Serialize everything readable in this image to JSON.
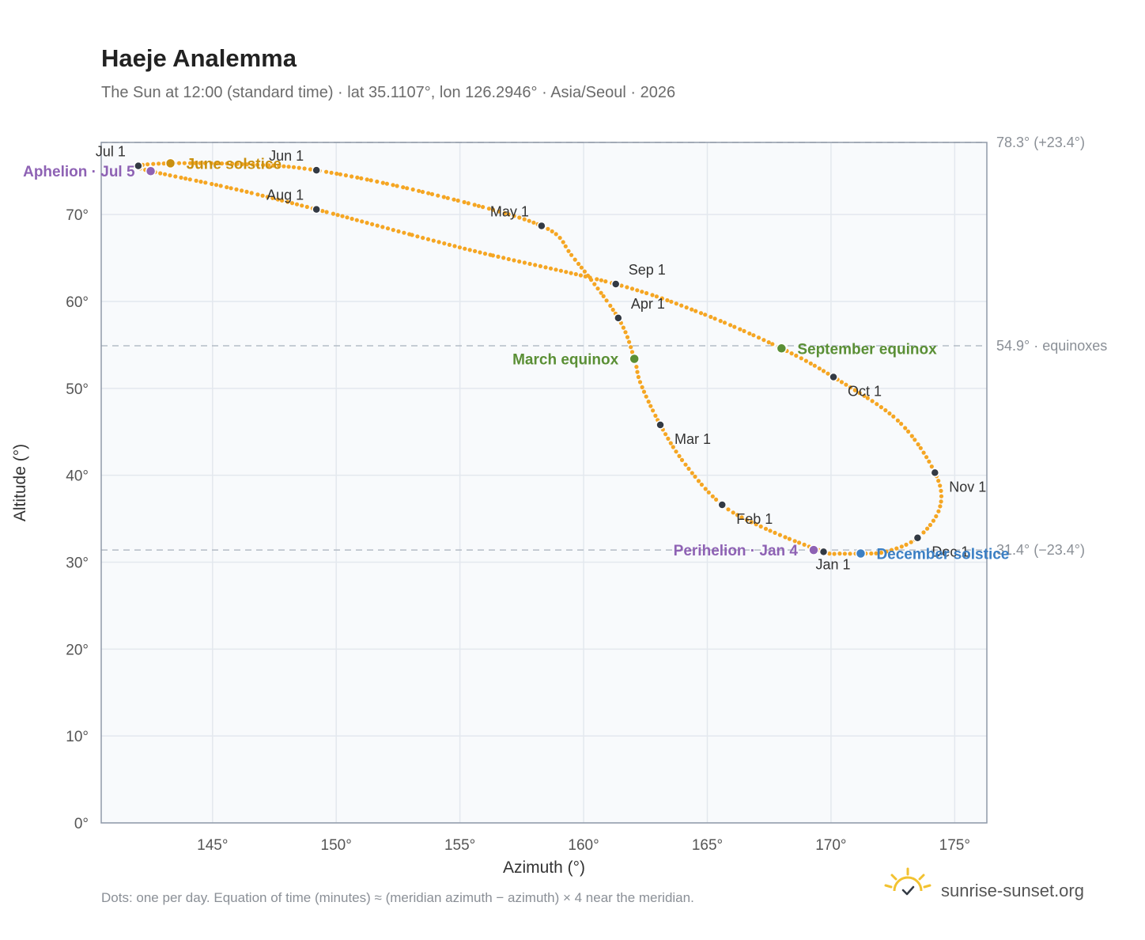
{
  "header": {
    "title": "Haeje Analemma",
    "subtitle": "The Sun at 12:00 (standard time) · lat 35.1107°, lon 126.2946° · Asia/Seoul · 2026"
  },
  "footer": {
    "note": "Dots: one per day. Equation of time (minutes) ≈ (meridian azimuth − azimuth) × 4 near the meridian.",
    "brand": "sunrise-sunset.org"
  },
  "colors": {
    "curve": "#f5a623",
    "month_dot": "#333a44",
    "solstice_june": "#c9900f",
    "equinox": "#5a8f35",
    "apsis": "#8e62b4",
    "solstice_december": "#3b7fc4",
    "plot_bg": "#f8fafc",
    "grid": "#e3e8ee",
    "frame": "#8f99a8",
    "ref_line": "#b4bcc6"
  },
  "chart_data": {
    "type": "scatter",
    "title": "Haeje Analemma",
    "xlabel": "Azimuth (°)",
    "ylabel": "Altitude (°)",
    "xlim": [
      140.5,
      176.3
    ],
    "ylim": [
      0,
      78.3
    ],
    "x_ticks": [
      145,
      150,
      155,
      160,
      165,
      170,
      175
    ],
    "y_ticks": [
      0,
      10,
      20,
      30,
      40,
      50,
      60,
      70
    ],
    "grid": true,
    "reference_lines": [
      {
        "altitude": 78.3,
        "label": "78.3° (+23.4°)"
      },
      {
        "altitude": 54.9,
        "label": "54.9° · equinoxes"
      },
      {
        "altitude": 31.4,
        "label": "31.4° (−23.4°)"
      }
    ],
    "path": [
      {
        "az": 169.7,
        "alt": 31.2
      },
      {
        "az": 167.4,
        "alt": 33.8
      },
      {
        "az": 165.6,
        "alt": 36.6
      },
      {
        "az": 164.1,
        "alt": 41.3
      },
      {
        "az": 163.1,
        "alt": 45.8
      },
      {
        "az": 162.3,
        "alt": 50.6
      },
      {
        "az": 162.05,
        "alt": 53.4
      },
      {
        "az": 161.4,
        "alt": 58.1
      },
      {
        "az": 159.6,
        "alt": 65.0
      },
      {
        "az": 158.3,
        "alt": 68.7
      },
      {
        "az": 153.8,
        "alt": 72.4
      },
      {
        "az": 149.2,
        "alt": 75.1
      },
      {
        "az": 146.2,
        "alt": 75.8
      },
      {
        "az": 143.3,
        "alt": 75.9
      },
      {
        "az": 142.0,
        "alt": 75.6
      },
      {
        "az": 142.5,
        "alt": 75.0
      },
      {
        "az": 145.8,
        "alt": 73.0
      },
      {
        "az": 149.2,
        "alt": 70.6
      },
      {
        "az": 155.3,
        "alt": 66.0
      },
      {
        "az": 161.3,
        "alt": 62.0
      },
      {
        "az": 164.8,
        "alt": 58.6
      },
      {
        "az": 168.0,
        "alt": 54.6
      },
      {
        "az": 170.1,
        "alt": 51.3
      },
      {
        "az": 172.7,
        "alt": 46.3
      },
      {
        "az": 174.2,
        "alt": 40.3
      },
      {
        "az": 174.4,
        "alt": 36.3
      },
      {
        "az": 173.5,
        "alt": 32.8
      },
      {
        "az": 172.2,
        "alt": 31.2
      },
      {
        "az": 171.2,
        "alt": 31.0
      },
      {
        "az": 170.3,
        "alt": 31.0
      },
      {
        "az": 169.7,
        "alt": 31.2
      }
    ],
    "month_markers": [
      {
        "label": "Jan 1",
        "az": 169.7,
        "alt": 31.2,
        "anchor": "below"
      },
      {
        "label": "Feb 1",
        "az": 165.6,
        "alt": 36.6,
        "anchor": "below-right"
      },
      {
        "label": "Mar 1",
        "az": 163.1,
        "alt": 45.8,
        "anchor": "below-right"
      },
      {
        "label": "Apr 1",
        "az": 161.4,
        "alt": 58.1,
        "anchor": "above-right"
      },
      {
        "label": "May 1",
        "az": 158.3,
        "alt": 68.7,
        "anchor": "above-left"
      },
      {
        "label": "Jun 1",
        "az": 149.2,
        "alt": 75.1,
        "anchor": "above-left"
      },
      {
        "label": "Jul 1",
        "az": 142.0,
        "alt": 75.6,
        "anchor": "above-left"
      },
      {
        "label": "Aug 1",
        "az": 149.2,
        "alt": 70.6,
        "anchor": "above-left"
      },
      {
        "label": "Sep 1",
        "az": 161.3,
        "alt": 62.0,
        "anchor": "above-right"
      },
      {
        "label": "Oct 1",
        "az": 170.1,
        "alt": 51.3,
        "anchor": "below-right"
      },
      {
        "label": "Nov 1",
        "az": 174.2,
        "alt": 40.3,
        "anchor": "below-right"
      },
      {
        "label": "Dec 1",
        "az": 173.5,
        "alt": 32.8,
        "anchor": "below-right"
      }
    ],
    "events": [
      {
        "label": "June solstice",
        "az": 143.3,
        "alt": 75.9,
        "color": "#c9900f",
        "anchor": "right"
      },
      {
        "label": "Aphelion · Jul 5",
        "az": 142.5,
        "alt": 75.0,
        "color": "#8e62b4",
        "anchor": "left"
      },
      {
        "label": "March equinox",
        "az": 162.05,
        "alt": 53.4,
        "color": "#5a8f35",
        "anchor": "left"
      },
      {
        "label": "September equinox",
        "az": 168.0,
        "alt": 54.6,
        "color": "#5a8f35",
        "anchor": "right"
      },
      {
        "label": "Perihelion · Jan 4",
        "az": 169.3,
        "alt": 31.4,
        "color": "#8e62b4",
        "anchor": "left"
      },
      {
        "label": "December solstice",
        "az": 171.2,
        "alt": 31.0,
        "color": "#3b7fc4",
        "anchor": "right"
      }
    ]
  }
}
